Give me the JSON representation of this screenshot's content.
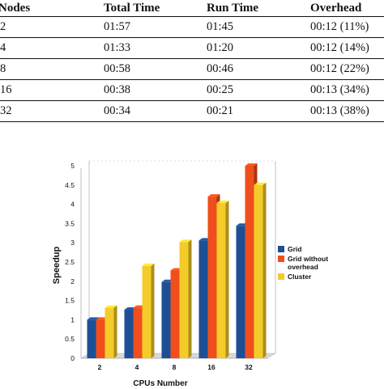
{
  "table": {
    "headers": [
      "Nodes",
      "Total Time",
      "Run Time",
      "Overhead"
    ],
    "rows": [
      [
        "2",
        "01:57",
        "01:45",
        "00:12 (11%)"
      ],
      [
        "4",
        "01:33",
        "01:20",
        "00:12 (14%)"
      ],
      [
        "8",
        "00:58",
        "00:46",
        "00:12 (22%)"
      ],
      [
        "16",
        "00:38",
        "00:25",
        "00:13 (34%)"
      ],
      [
        "32",
        "00:34",
        "00:21",
        "00:13 (38%)"
      ]
    ]
  },
  "chart_data": {
    "type": "bar",
    "categories": [
      "2",
      "4",
      "8",
      "16",
      "32"
    ],
    "series": [
      {
        "name": "Grid",
        "values": [
          1.0,
          1.26,
          1.98,
          3.06,
          3.44
        ],
        "color": "#1d4f96"
      },
      {
        "name": "Grid without overhead",
        "values": [
          1.0,
          1.31,
          2.28,
          4.2,
          5.0
        ],
        "color": "#f04e1c"
      },
      {
        "name": "Cluster",
        "values": [
          1.31,
          2.4,
          3.02,
          4.03,
          4.5
        ],
        "color": "#f4cc2a"
      }
    ],
    "xlabel": "CPUs Number",
    "ylabel": "Speedup",
    "ylim": [
      0,
      5
    ],
    "yticks": [
      "0",
      "0.5",
      "1",
      "1.5",
      "2",
      "2.5",
      "3",
      "3.5",
      "4",
      "4.5",
      "5"
    ],
    "legend_placement": "right",
    "grid": false
  }
}
